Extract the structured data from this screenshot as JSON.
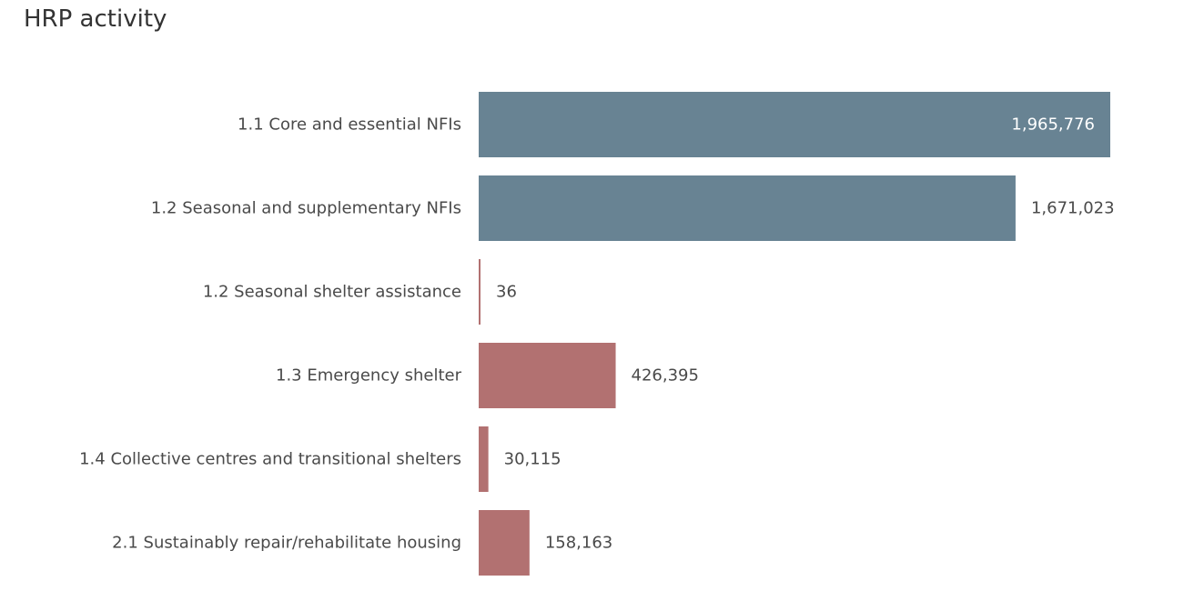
{
  "chart_data": {
    "type": "bar",
    "orientation": "horizontal",
    "title": "HRP activity",
    "categories": [
      "1.1 Core and essential NFIs",
      "1.2 Seasonal and supplementary NFIs",
      "1.2 Seasonal shelter assistance",
      "1.3 Emergency shelter",
      "1.4 Collective centres and transitional shelters",
      "2.1 Sustainably repair/rehabilitate housing"
    ],
    "values": [
      1965776,
      1671023,
      36,
      426395,
      30115,
      158163
    ],
    "value_labels": [
      "1,965,776",
      "1,671,023",
      "36",
      "426,395",
      "30,115",
      "158,163"
    ],
    "colors": [
      "#688393",
      "#688393",
      "#b27171",
      "#b27171",
      "#b27171",
      "#b27171"
    ],
    "xlim": [
      0,
      1965776
    ],
    "grid": false,
    "legend": "none"
  }
}
